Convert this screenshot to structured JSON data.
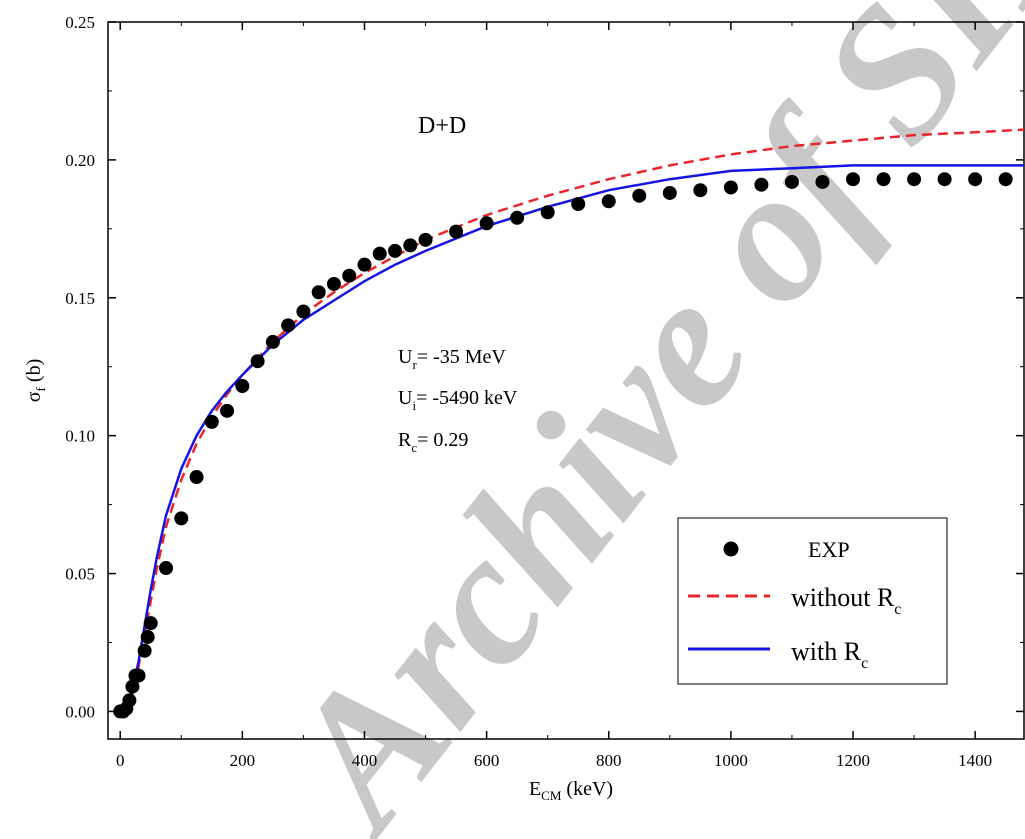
{
  "chart_data": {
    "type": "scatter",
    "title": "D+D",
    "xlabel": "E",
    "xlabel_sub": "CM",
    "xlabel_unit": " (keV)",
    "ylabel": "σ",
    "ylabel_sub": "f",
    "ylabel_unit": " (b)",
    "xlim": [
      -20,
      1480
    ],
    "ylim": [
      -0.01,
      0.25
    ],
    "xticks": [
      0,
      200,
      400,
      600,
      800,
      1000,
      1200,
      1400
    ],
    "yticks": [
      "0.00",
      "0.05",
      "0.10",
      "0.15",
      "0.20",
      "0.25"
    ],
    "grid": false,
    "legend_position": "bottom-right",
    "annotations": {
      "ur_label": "U",
      "ur_sub": "r",
      "ur_value": "= -35 MeV",
      "ui_label": "U",
      "ui_sub": "i",
      "ui_value": "= -5490  keV",
      "rc_label": "R",
      "rc_sub": "c",
      "rc_value": "= 0.29"
    },
    "series": [
      {
        "name": "EXP",
        "kind": "markers",
        "color": "#000000",
        "x": [
          0,
          5,
          10,
          15,
          20,
          25,
          30,
          40,
          45,
          50,
          75,
          100,
          125,
          150,
          175,
          200,
          225,
          250,
          275,
          300,
          325,
          350,
          375,
          400,
          425,
          450,
          475,
          500,
          550,
          600,
          650,
          700,
          750,
          800,
          850,
          900,
          950,
          1000,
          1050,
          1100,
          1150,
          1200,
          1250,
          1300,
          1350,
          1400,
          1450
        ],
        "y": [
          0.0,
          0.0,
          0.001,
          0.004,
          0.009,
          0.013,
          0.013,
          0.022,
          0.027,
          0.032,
          0.052,
          0.07,
          0.085,
          0.105,
          0.109,
          0.118,
          0.127,
          0.134,
          0.14,
          0.145,
          0.152,
          0.155,
          0.158,
          0.162,
          0.166,
          0.167,
          0.169,
          0.171,
          0.174,
          0.177,
          0.179,
          0.181,
          0.184,
          0.185,
          0.187,
          0.188,
          0.189,
          0.19,
          0.191,
          0.192,
          0.192,
          0.193,
          0.193,
          0.193,
          0.193,
          0.193,
          0.193
        ]
      },
      {
        "name": "without R",
        "name_sub": "c",
        "kind": "dashed",
        "color": "#e8262b",
        "x": [
          0,
          10,
          20,
          30,
          40,
          50,
          60,
          75,
          100,
          125,
          150,
          175,
          200,
          250,
          300,
          350,
          400,
          450,
          500,
          600,
          700,
          800,
          900,
          1000,
          1100,
          1200,
          1300,
          1400,
          1480
        ],
        "y": [
          0.0,
          0.001,
          0.006,
          0.016,
          0.028,
          0.04,
          0.052,
          0.067,
          0.084,
          0.097,
          0.107,
          0.115,
          0.122,
          0.134,
          0.144,
          0.152,
          0.159,
          0.165,
          0.171,
          0.18,
          0.187,
          0.193,
          0.198,
          0.202,
          0.205,
          0.207,
          0.209,
          0.21,
          0.211
        ]
      },
      {
        "name": "with R",
        "name_sub": "c",
        "kind": "solid",
        "color": "#1414e6",
        "x": [
          0,
          10,
          20,
          30,
          40,
          50,
          60,
          75,
          100,
          125,
          150,
          175,
          200,
          250,
          300,
          350,
          400,
          450,
          500,
          600,
          700,
          800,
          900,
          1000,
          1100,
          1200,
          1300,
          1400,
          1480
        ],
        "y": [
          0.0,
          0.002,
          0.008,
          0.018,
          0.031,
          0.044,
          0.056,
          0.071,
          0.088,
          0.1,
          0.109,
          0.116,
          0.122,
          0.133,
          0.142,
          0.149,
          0.156,
          0.162,
          0.167,
          0.176,
          0.183,
          0.189,
          0.193,
          0.196,
          0.197,
          0.198,
          0.198,
          0.198,
          0.198
        ]
      }
    ]
  },
  "watermark": {
    "line1": "Archive of SID",
    "color": "#c8c8c8"
  }
}
